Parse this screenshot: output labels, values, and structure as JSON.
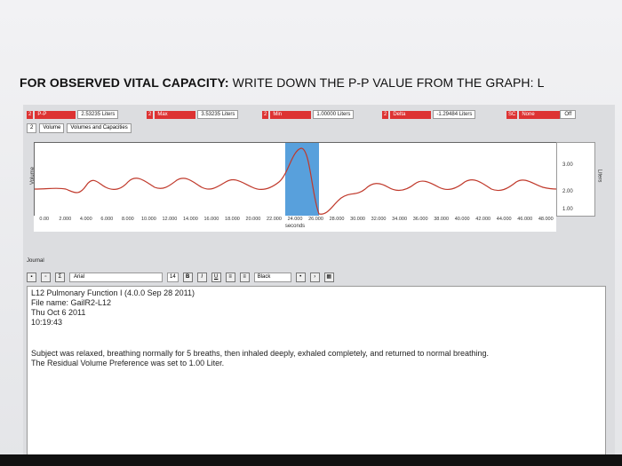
{
  "question": {
    "bold": "FOR OBSERVED VITAL CAPACITY:",
    "rest": " WRITE DOWN THE P-P VALUE FROM THE GRAPH: L"
  },
  "measurements": [
    {
      "ch": "2",
      "type": "P-P",
      "value": "2.53235 Liters"
    },
    {
      "ch": "2",
      "type": "Max",
      "value": "3.53235 Liters"
    },
    {
      "ch": "2",
      "type": "Min",
      "value": "1.00000 Liters"
    },
    {
      "ch": "2",
      "type": "Delta",
      "value": "-1.29484 Liters"
    }
  ],
  "sc": {
    "label": "SC",
    "type": "None",
    "value": "Off"
  },
  "channel": {
    "num": "2",
    "name": "Volume",
    "label": "Volumes and Capacities"
  },
  "chart": {
    "ylabel_left": "Volume",
    "ylabel_right": "Liters",
    "yticks": [
      "3.00",
      "2.00",
      "1.00"
    ],
    "xticks": [
      "0.00",
      "2.000",
      "4.000",
      "6.000",
      "8.000",
      "10.000",
      "12.000",
      "14.000",
      "16.000",
      "18.000",
      "20.000",
      "22.000",
      "24.000",
      "26.000",
      "28.000",
      "30.000",
      "32.000",
      "34.000",
      "36.000",
      "38.000",
      "40.000",
      "42.000",
      "44.000",
      "46.000",
      "48.000"
    ],
    "xlabel": "seconds",
    "highlight_color": "#3b8fd6",
    "trace_color": "#c0392b"
  },
  "journal": {
    "label": "Journal",
    "font": "Arial",
    "size": "14",
    "color": "Black",
    "lines": [
      "L12 Pulmonary Function I (4.0.0 Sep 28 2011)",
      "File name: GailR2-L12",
      "Thu Oct 6 2011",
      "10:19:43",
      "Subject was relaxed, breathing normally for 5 breaths, then inhaled deeply, exhaled completely, and returned to normal breathing.",
      "The Residual Volume Preference was set to  1.00 Liter."
    ]
  }
}
